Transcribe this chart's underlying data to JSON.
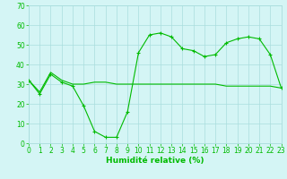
{
  "line1_x": [
    0,
    1,
    2,
    3,
    4,
    5,
    6,
    7,
    8,
    9,
    10,
    11,
    12,
    13,
    14,
    15,
    16,
    17,
    18,
    19,
    20,
    21,
    22,
    23
  ],
  "line1_y": [
    32,
    25,
    35,
    31,
    29,
    19,
    6,
    3,
    3,
    16,
    46,
    55,
    56,
    54,
    48,
    47,
    44,
    45,
    51,
    53,
    54,
    53,
    45,
    28
  ],
  "line2_x": [
    0,
    1,
    2,
    3,
    4,
    5,
    6,
    7,
    8,
    9,
    10,
    11,
    12,
    13,
    14,
    15,
    16,
    17,
    18,
    19,
    20,
    21,
    22,
    23
  ],
  "line2_y": [
    32,
    26,
    36,
    32,
    30,
    30,
    31,
    31,
    30,
    30,
    30,
    30,
    30,
    30,
    30,
    30,
    30,
    30,
    29,
    29,
    29,
    29,
    29,
    28
  ],
  "line_color": "#00bb00",
  "bg_color": "#d4f5f5",
  "grid_color": "#aadddd",
  "xlabel": "Humidité relative (%)",
  "ylim": [
    0,
    70
  ],
  "xlim": [
    0,
    23
  ],
  "yticks": [
    0,
    10,
    20,
    30,
    40,
    50,
    60,
    70
  ],
  "xticks": [
    0,
    1,
    2,
    3,
    4,
    5,
    6,
    7,
    8,
    9,
    10,
    11,
    12,
    13,
    14,
    15,
    16,
    17,
    18,
    19,
    20,
    21,
    22,
    23
  ],
  "tick_fontsize": 5.5,
  "xlabel_fontsize": 6.5
}
